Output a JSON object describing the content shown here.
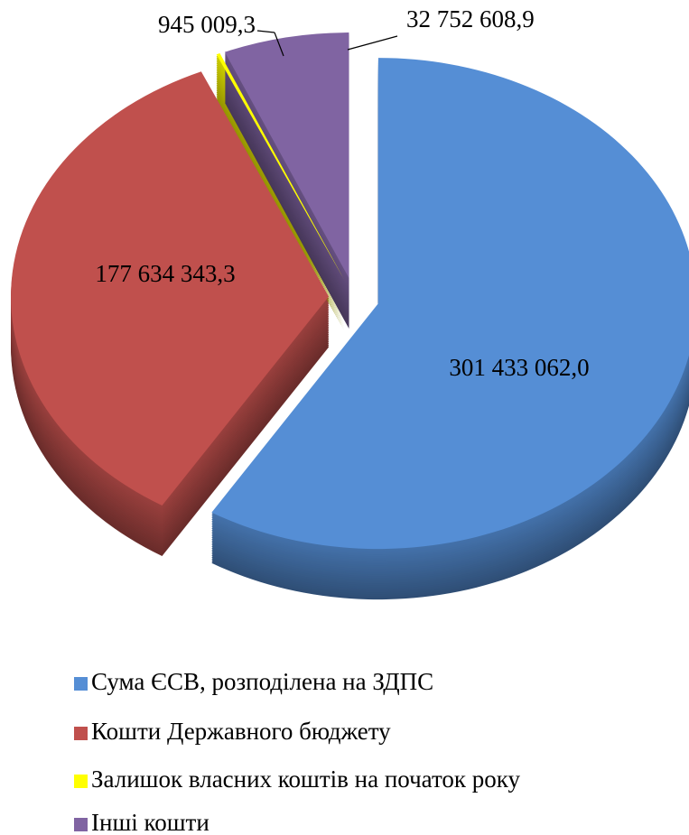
{
  "chart_data": {
    "type": "pie",
    "categories": [
      "Сума ЄСВ, розподілена на ЗДПС",
      "Кошти Державного бюджету",
      "Залишок власних коштів на початок року",
      "Інші кошти"
    ],
    "values": [
      301433062.0,
      177634343.3,
      945009.3,
      32752608.9
    ],
    "value_labels": [
      "301 433 062,0",
      "177 634 343,3",
      "945 009,3",
      "32 752 608,9"
    ],
    "colors": [
      "#558ed5",
      "#c0504d",
      "#ffff00",
      "#8064a2"
    ]
  }
}
